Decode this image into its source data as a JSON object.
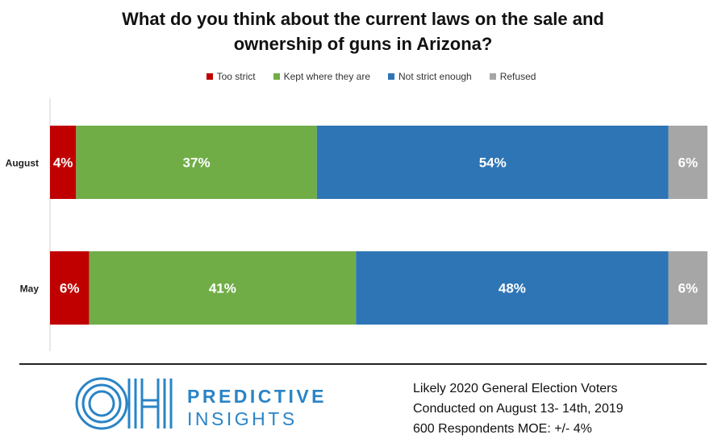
{
  "chart_data": {
    "type": "bar",
    "orientation": "horizontal",
    "stacked": true,
    "title": "What do you think about the current laws on the sale and ownership of guns in Arizona?",
    "categories": [
      "August",
      "May"
    ],
    "series": [
      {
        "name": "Too strict",
        "color": "#c00000",
        "values": [
          4,
          6
        ],
        "labels": [
          "4%",
          "6%"
        ]
      },
      {
        "name": "Kept where they are",
        "color": "#70ad47",
        "values": [
          37,
          41
        ],
        "labels": [
          "37%",
          "41%"
        ]
      },
      {
        "name": "Not strict enough",
        "color": "#2e75b6",
        "values": [
          54,
          48
        ],
        "labels": [
          "54%",
          "48%"
        ]
      },
      {
        "name": "Refused",
        "color": "#a6a6a6",
        "values": [
          6,
          6
        ],
        "labels": [
          "6%",
          "6%"
        ]
      }
    ],
    "legend": "top",
    "grid": false
  },
  "title_line1": "What do you think about the current laws on the sale and",
  "title_line2": "ownership of guns in Arizona?",
  "legend": [
    {
      "label": "Too strict",
      "color": "#c00000"
    },
    {
      "label": "Kept where they are",
      "color": "#70ad47"
    },
    {
      "label": "Not strict enough",
      "color": "#2e75b6"
    },
    {
      "label": "Refused",
      "color": "#a6a6a6"
    }
  ],
  "footer": {
    "brand_line1": "PREDICTIVE",
    "brand_line2": "INSIGHTS",
    "logo_text": "OH",
    "brand_color": "#2a84c6",
    "note_line1": "Likely 2020 General Election Voters",
    "note_line2": "Conducted on August 13- 14th, 2019",
    "note_line3": "600 Respondents  MOE: +/- 4%"
  }
}
